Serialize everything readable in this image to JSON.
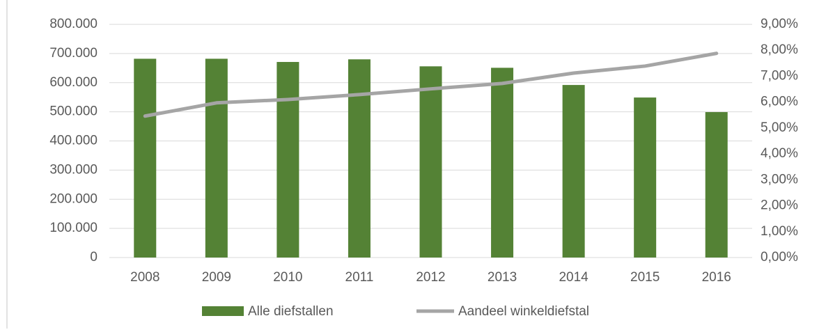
{
  "chart_data": {
    "type": "bar",
    "categories": [
      "2008",
      "2009",
      "2010",
      "2011",
      "2012",
      "2013",
      "2014",
      "2015",
      "2016"
    ],
    "series": [
      {
        "name": "Alle diefstallen",
        "type": "bar",
        "color": "#548235",
        "values": [
          682000,
          682000,
          671000,
          680000,
          656000,
          651000,
          592000,
          549000,
          499000
        ]
      },
      {
        "name": "Aandeel winkeldiefstal",
        "type": "line",
        "axis": "y2",
        "color": "#a5a5a5",
        "values": [
          5.46,
          5.97,
          6.1,
          6.29,
          6.51,
          6.72,
          7.12,
          7.39,
          7.88
        ]
      }
    ],
    "ylim": [
      0,
      800000
    ],
    "yticks": [
      0,
      {
        "value": 100000,
        "label": "100.000"
      },
      {
        "value": 200000,
        "label": "200.000"
      },
      {
        "value": 300000,
        "label": "300.000"
      },
      {
        "value": 400000,
        "label": "400.000"
      },
      {
        "value": 500000,
        "label": "500.000"
      },
      {
        "value": 600000,
        "label": "600.000"
      },
      {
        "value": 700000,
        "label": "700.000"
      },
      {
        "value": 800000,
        "label": "800.000"
      }
    ],
    "y2lim": [
      0,
      9
    ],
    "y2ticks": [
      {
        "value": 0,
        "label": "0,00%"
      },
      {
        "value": 1,
        "label": "1,00%"
      },
      {
        "value": 2,
        "label": "2,00%"
      },
      {
        "value": 3,
        "label": "3,00%"
      },
      {
        "value": 4,
        "label": "4,00%"
      },
      {
        "value": 5,
        "label": "5,00%"
      },
      {
        "value": 6,
        "label": "6,00%"
      },
      {
        "value": 7,
        "label": "7,00%"
      },
      {
        "value": 8,
        "label": "8,00%"
      },
      {
        "value": 9,
        "label": "9,00%"
      }
    ],
    "grid": true,
    "legend": "bottom"
  }
}
